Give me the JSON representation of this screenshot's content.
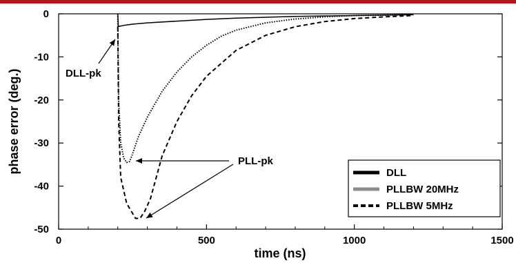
{
  "colors": {
    "top_bar": "#b1171d"
  },
  "chart_data": {
    "type": "line",
    "title": "",
    "xlabel": "time (ns)",
    "ylabel": "phase error  (deg.)",
    "xlim": [
      0,
      1500
    ],
    "ylim": [
      -50,
      0
    ],
    "xticks": [
      0,
      500,
      1000,
      1500
    ],
    "yticks": [
      0,
      -10,
      -20,
      -30,
      -40,
      -50
    ],
    "grid": false,
    "legend_position": "bottom-right",
    "series": [
      {
        "name": "DLL",
        "style": "solid",
        "x": [
          200,
          202,
          205,
          220,
          250,
          300,
          400,
          500,
          600,
          700,
          800,
          900,
          1000,
          1100,
          1200
        ],
        "y": [
          0,
          -3.0,
          -2.9,
          -2.7,
          -2.4,
          -2.1,
          -1.7,
          -1.3,
          -1.0,
          -0.8,
          -0.6,
          -0.5,
          -0.4,
          -0.3,
          -0.2
        ]
      },
      {
        "name": "PLLBW 20MHz",
        "style": "dotted",
        "x": [
          200,
          203,
          210,
          220,
          230,
          240,
          250,
          270,
          300,
          350,
          400,
          450,
          500,
          550,
          600,
          700,
          800,
          900,
          1000,
          1100,
          1200
        ],
        "y": [
          0,
          -20,
          -30,
          -33.5,
          -34.5,
          -34.3,
          -32.5,
          -28.5,
          -24,
          -18,
          -13.5,
          -10,
          -7.3,
          -5.2,
          -3.8,
          -2.1,
          -1.2,
          -0.7,
          -0.4,
          -0.3,
          -0.2
        ]
      },
      {
        "name": "PLLBW 5MHz",
        "style": "dashed",
        "x": [
          200,
          203,
          210,
          230,
          260,
          275,
          290,
          310,
          330,
          350,
          400,
          450,
          500,
          600,
          700,
          800,
          900,
          1000,
          1100,
          1200
        ],
        "y": [
          -3.0,
          -25,
          -38,
          -44,
          -47.5,
          -47.5,
          -46,
          -43,
          -38,
          -33,
          -25,
          -19,
          -14.5,
          -8.5,
          -5,
          -3,
          -1.8,
          -1.1,
          -0.7,
          -0.4
        ]
      }
    ],
    "annotations": [
      {
        "text": "DLL-pk",
        "points_to": [
          200,
          -3
        ]
      },
      {
        "text": "PLL-pk",
        "points_to": [
          [
            250,
            -34
          ],
          [
            280,
            -47
          ]
        ]
      }
    ]
  }
}
